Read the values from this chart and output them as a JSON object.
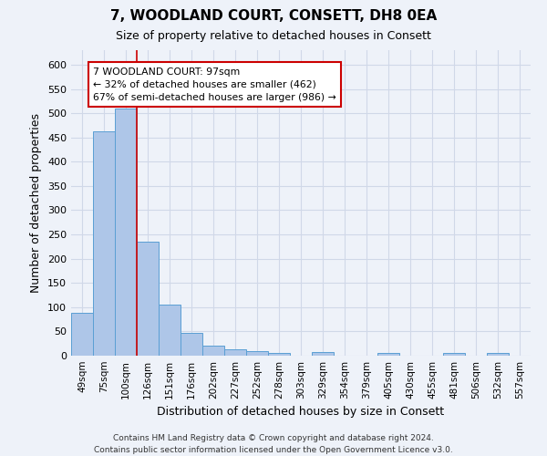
{
  "title1": "7, WOODLAND COURT, CONSETT, DH8 0EA",
  "title2": "Size of property relative to detached houses in Consett",
  "xlabel": "Distribution of detached houses by size in Consett",
  "ylabel": "Number of detached properties",
  "categories": [
    "49sqm",
    "75sqm",
    "100sqm",
    "126sqm",
    "151sqm",
    "176sqm",
    "202sqm",
    "227sqm",
    "252sqm",
    "278sqm",
    "303sqm",
    "329sqm",
    "354sqm",
    "379sqm",
    "405sqm",
    "430sqm",
    "455sqm",
    "481sqm",
    "506sqm",
    "532sqm",
    "557sqm"
  ],
  "values": [
    88,
    462,
    510,
    235,
    105,
    47,
    20,
    14,
    9,
    5,
    0,
    7,
    0,
    0,
    5,
    0,
    0,
    5,
    0,
    5,
    0
  ],
  "bar_color": "#aec6e8",
  "bar_edge_color": "#5a9fd4",
  "grid_color": "#d0d8e8",
  "vline_color": "#cc0000",
  "annotation_text": "7 WOODLAND COURT: 97sqm\n← 32% of detached houses are smaller (462)\n67% of semi-detached houses are larger (986) →",
  "annotation_box_color": "#ffffff",
  "annotation_box_edge": "#cc0000",
  "ylim": [
    0,
    630
  ],
  "yticks": [
    0,
    50,
    100,
    150,
    200,
    250,
    300,
    350,
    400,
    450,
    500,
    550,
    600
  ],
  "footer": "Contains HM Land Registry data © Crown copyright and database right 2024.\nContains public sector information licensed under the Open Government Licence v3.0.",
  "background_color": "#eef2f9"
}
